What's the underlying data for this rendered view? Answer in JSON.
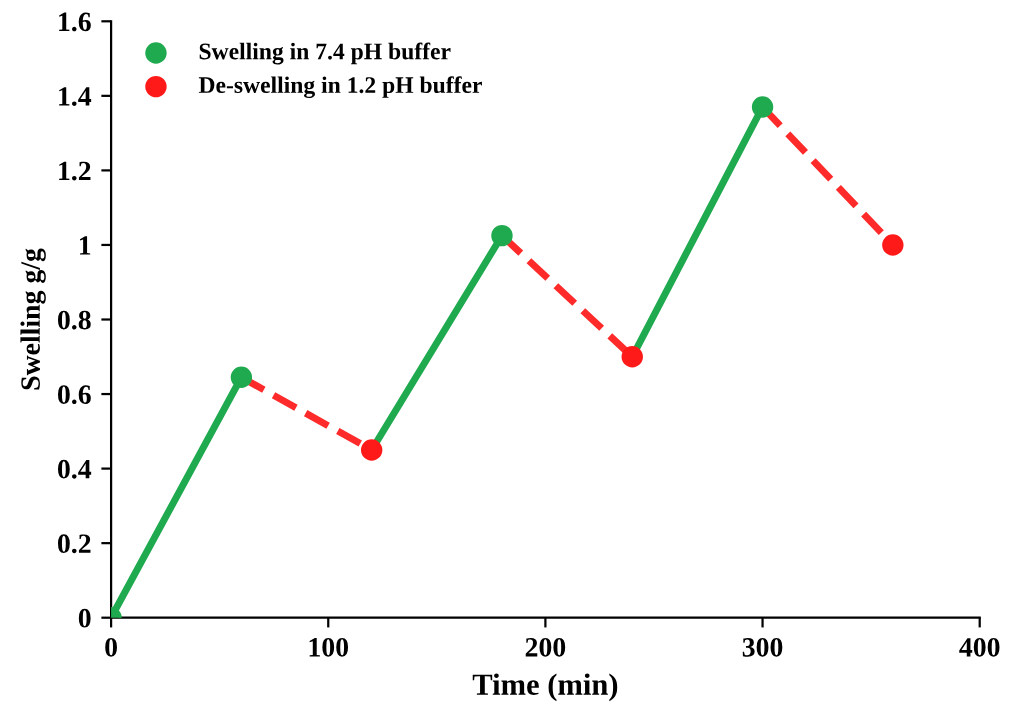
{
  "chart_data": {
    "type": "line",
    "xlabel": "Time (min)",
    "ylabel": "Swelling g/g",
    "xlim": [
      0,
      400
    ],
    "xticks": [
      0,
      100,
      200,
      300,
      400
    ],
    "ylim": [
      0,
      1.6
    ],
    "yticks": [
      0,
      0.2,
      0.4,
      0.6,
      0.8,
      1,
      1.2,
      1.4,
      1.6
    ],
    "grid": false,
    "legend": "top left",
    "series": [
      {
        "color": "#1faa4f",
        "line_style": "solid",
        "marker": "none",
        "x": [
          0,
          60,
          90,
          120,
          180,
          210,
          240,
          300
        ],
        "values": [
          0,
          0.645,
          null,
          0.45,
          1.025,
          null,
          0.7,
          1.37
        ]
      },
      {
        "color": "#ff2a2a",
        "line_style": "dashed",
        "marker": "none",
        "x": [
          60,
          120,
          150,
          180,
          240,
          270,
          300,
          360
        ],
        "values": [
          0.645,
          0.45,
          null,
          1.025,
          0.7,
          null,
          1.37,
          1.0
        ]
      },
      {
        "type": "scatter",
        "name": "Swelling in 7.4 pH buffer",
        "color": "#1faa4f",
        "marker": "circle",
        "x": [
          0,
          60,
          180,
          300
        ],
        "values": [
          0,
          0.645,
          1.025,
          1.37
        ]
      },
      {
        "type": "scatter",
        "name": "De-swelling in 1.2 pH buffer",
        "color": "#ff1a1a",
        "marker": "circle",
        "x": [
          120,
          240,
          360
        ],
        "values": [
          0.45,
          0.7,
          1.0
        ]
      }
    ]
  }
}
